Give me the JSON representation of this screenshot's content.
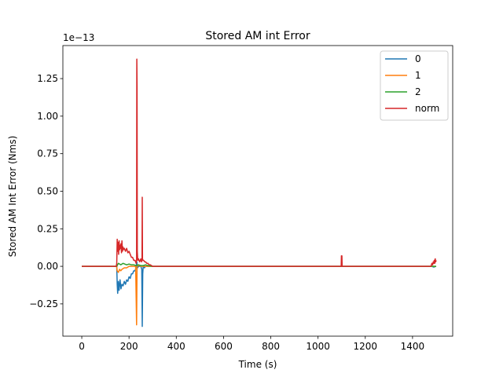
{
  "chart_data": {
    "type": "line",
    "title": "Stored AM int Error",
    "xlabel": "Time (s)",
    "ylabel": "Stored AM Int Error (Nms)",
    "offset_text": "1e−13",
    "xlim": [
      -80,
      1570
    ],
    "ylim": [
      -0.465,
      1.47
    ],
    "y_scale_note": "values in units of 1e-13",
    "xticks": [
      0,
      200,
      400,
      600,
      800,
      1000,
      1200,
      1400
    ],
    "xtick_labels": [
      "0",
      "200",
      "400",
      "600",
      "800",
      "1000",
      "1200",
      "1400"
    ],
    "yticks": [
      -0.25,
      0.0,
      0.25,
      0.5,
      0.75,
      1.0,
      1.25
    ],
    "ytick_labels": [
      "−0.25",
      "0.00",
      "0.25",
      "0.50",
      "0.75",
      "1.00",
      "1.25"
    ],
    "grid": false,
    "legend_position": "top-right",
    "series": [
      {
        "name": "0",
        "color": "#1f77b4",
        "x": [
          0,
          148,
          150,
          152,
          155,
          158,
          162,
          166,
          170,
          175,
          180,
          185,
          190,
          195,
          200,
          205,
          210,
          215,
          220,
          225,
          230,
          233,
          236,
          240,
          245,
          250,
          254,
          256,
          258,
          260,
          265,
          270,
          275,
          280,
          290,
          300,
          310,
          1100,
          1102,
          1104,
          1480,
          1490,
          1500
        ],
        "y": [
          0,
          0,
          -0.12,
          -0.18,
          -0.1,
          -0.16,
          -0.09,
          -0.15,
          -0.12,
          -0.13,
          -0.1,
          -0.12,
          -0.09,
          -0.1,
          -0.07,
          -0.08,
          -0.05,
          -0.05,
          -0.03,
          -0.03,
          -0.01,
          0.03,
          -0.01,
          0.0,
          0.0,
          0.0,
          -0.02,
          -0.4,
          -0.05,
          0.0,
          -0.01,
          0.0,
          0.0,
          0.0,
          0.0,
          0.0,
          0.0,
          0.0,
          0.0,
          0.0,
          0.0,
          -0.005,
          0.0
        ]
      },
      {
        "name": "1",
        "color": "#ff7f0e",
        "x": [
          0,
          148,
          150,
          155,
          160,
          165,
          170,
          180,
          190,
          200,
          210,
          220,
          228,
          232,
          234,
          236,
          240,
          250,
          260,
          270,
          280,
          300,
          1500
        ],
        "y": [
          0,
          0,
          -0.03,
          -0.04,
          -0.02,
          -0.03,
          -0.02,
          -0.01,
          -0.01,
          0.0,
          0.0,
          0.0,
          0.0,
          -0.39,
          0.0,
          0.01,
          0.005,
          0.0,
          0.0,
          0.0,
          0.0,
          0.0,
          0.0
        ]
      },
      {
        "name": "2",
        "color": "#2ca02c",
        "x": [
          0,
          148,
          155,
          165,
          175,
          190,
          200,
          210,
          220,
          230,
          240,
          250,
          260,
          270,
          280,
          300,
          1480,
          1500
        ],
        "y": [
          0,
          0,
          0.02,
          0.01,
          0.02,
          0.01,
          0.015,
          0.01,
          0.01,
          0.005,
          0.01,
          0.005,
          0.005,
          0.01,
          0.005,
          0.0,
          0.0,
          0.0
        ]
      },
      {
        "name": "norm",
        "color": "#d62728",
        "x": [
          0,
          146,
          148,
          150,
          152,
          154,
          156,
          158,
          160,
          162,
          164,
          166,
          168,
          170,
          172,
          174,
          176,
          178,
          180,
          185,
          190,
          195,
          200,
          205,
          210,
          215,
          220,
          225,
          228,
          230,
          232,
          233,
          234,
          235,
          237,
          240,
          245,
          250,
          253,
          255,
          256,
          257,
          259,
          262,
          266,
          270,
          275,
          280,
          285,
          290,
          295,
          300,
          1098,
          1099,
          1100,
          1101,
          1102,
          1103,
          1470,
          1478,
          1482,
          1485,
          1488,
          1490,
          1492,
          1494,
          1496,
          1498,
          1500
        ],
        "y": [
          0,
          0,
          0.02,
          0.18,
          0.1,
          0.16,
          0.08,
          0.17,
          0.11,
          0.14,
          0.12,
          0.15,
          0.09,
          0.17,
          0.1,
          0.13,
          0.11,
          0.12,
          0.12,
          0.1,
          0.12,
          0.09,
          0.1,
          0.08,
          0.06,
          0.06,
          0.04,
          0.04,
          0.03,
          0.02,
          0.05,
          1.38,
          1.2,
          0.1,
          0.04,
          0.05,
          0.03,
          0.05,
          0.03,
          0.04,
          0.46,
          0.05,
          0.04,
          0.04,
          0.03,
          0.03,
          0.02,
          0.02,
          0.01,
          0.01,
          0.005,
          0.0,
          0.0,
          0.07,
          0.01,
          0.07,
          0.0,
          0.0,
          0.0,
          0.0,
          0.02,
          0.01,
          0.03,
          0.02,
          0.04,
          0.02,
          0.05,
          0.03,
          0.04
        ]
      }
    ]
  }
}
